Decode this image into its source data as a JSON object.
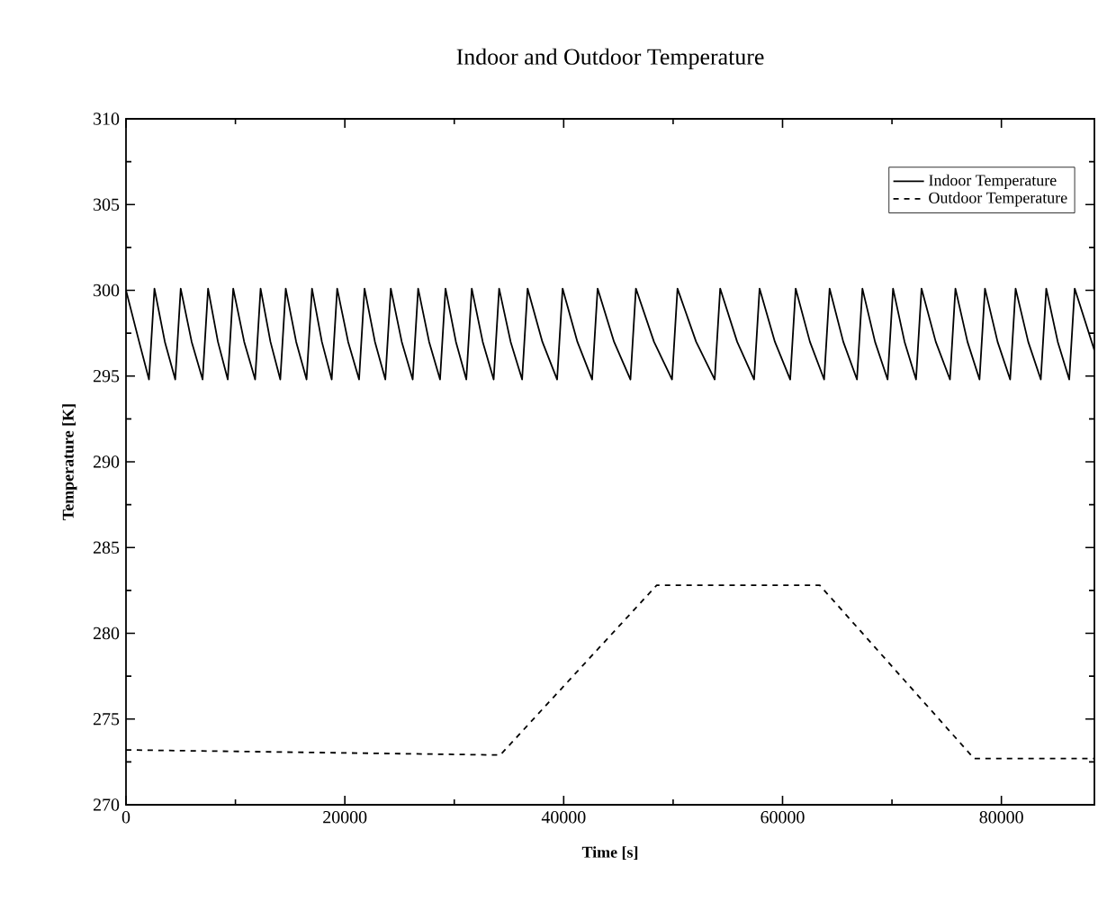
{
  "chart_data": {
    "type": "line",
    "title": "Indoor and Outdoor Temperature",
    "xlabel": "Time [s]",
    "ylabel": "Temperature [K]",
    "xlim": [
      0,
      88500
    ],
    "ylim": [
      270,
      310
    ],
    "xticks": [
      0,
      {
        "value": 10000,
        "label": null
      },
      20000,
      {
        "value": 30000,
        "label": null
      },
      40000,
      {
        "value": 50000,
        "label": null
      },
      60000,
      {
        "value": 70000,
        "label": null
      },
      80000
    ],
    "yticks": [
      270,
      {
        "value": 272.5,
        "label": null
      },
      275,
      {
        "value": 277.5,
        "label": null
      },
      280,
      {
        "value": 282.5,
        "label": null
      },
      285,
      {
        "value": 287.5,
        "label": null
      },
      290,
      {
        "value": 292.5,
        "label": null
      },
      295,
      {
        "value": 297.5,
        "label": null
      },
      300,
      {
        "value": 302.5,
        "label": null
      },
      305,
      {
        "value": 307.5,
        "label": null
      },
      310
    ],
    "grid": false,
    "legend": "top right",
    "series": [
      {
        "name": "Indoor Temperature",
        "color": "#000000",
        "line_style": "solid",
        "x": [
          0,
          1200,
          2100,
          2600,
          3550,
          4500,
          5000,
          6000,
          7000,
          7500,
          8400,
          9300,
          9800,
          10800,
          11800,
          12300,
          13200,
          14100,
          14600,
          15550,
          16500,
          17000,
          17900,
          18800,
          19300,
          20300,
          21300,
          21800,
          22750,
          23700,
          24200,
          25200,
          26200,
          26700,
          27700,
          28700,
          29200,
          30150,
          31100,
          31600,
          32600,
          33600,
          34100,
          35150,
          36200,
          36700,
          38050,
          39400,
          39900,
          41250,
          42600,
          43100,
          44600,
          46100,
          46600,
          48250,
          49900,
          50400,
          52100,
          53800,
          54300,
          55850,
          57400,
          57900,
          59300,
          60700,
          61200,
          62500,
          63800,
          64300,
          65550,
          66800,
          67300,
          68450,
          69600,
          70100,
          71150,
          72200,
          72700,
          74000,
          75300,
          75800,
          76900,
          78000,
          78500,
          79650,
          80800,
          81300,
          82450,
          83600,
          84100,
          85150,
          86200,
          86700,
          88500
        ],
        "values": [
          300.0,
          297.0,
          294.8,
          300.1,
          297.0,
          294.8,
          300.1,
          297.0,
          294.8,
          300.1,
          297.0,
          294.8,
          300.1,
          297.0,
          294.8,
          300.1,
          297.0,
          294.8,
          300.1,
          297.0,
          294.8,
          300.1,
          297.0,
          294.8,
          300.1,
          297.0,
          294.8,
          300.1,
          297.0,
          294.8,
          300.1,
          297.0,
          294.8,
          300.1,
          297.0,
          294.8,
          300.1,
          297.0,
          294.8,
          300.1,
          297.0,
          294.8,
          300.1,
          297.0,
          294.8,
          300.1,
          297.0,
          294.8,
          300.1,
          297.0,
          294.8,
          300.1,
          297.0,
          294.8,
          300.1,
          297.0,
          294.8,
          300.1,
          297.0,
          294.8,
          300.1,
          297.0,
          294.8,
          300.1,
          297.0,
          294.8,
          300.1,
          297.0,
          294.8,
          300.1,
          297.0,
          294.8,
          300.1,
          297.0,
          294.8,
          300.1,
          297.0,
          294.8,
          300.1,
          297.0,
          294.8,
          300.1,
          297.0,
          294.8,
          300.1,
          297.0,
          294.8,
          300.1,
          297.0,
          294.8,
          300.1,
          297.0,
          294.8,
          300.1,
          296.5
        ]
      },
      {
        "name": "Outdoor Temperature",
        "color": "#000000",
        "line_style": "dashed",
        "x": [
          0,
          34200,
          48500,
          63400,
          77500,
          88500
        ],
        "values": [
          273.2,
          272.9,
          282.8,
          282.8,
          272.7,
          272.7
        ]
      }
    ]
  }
}
